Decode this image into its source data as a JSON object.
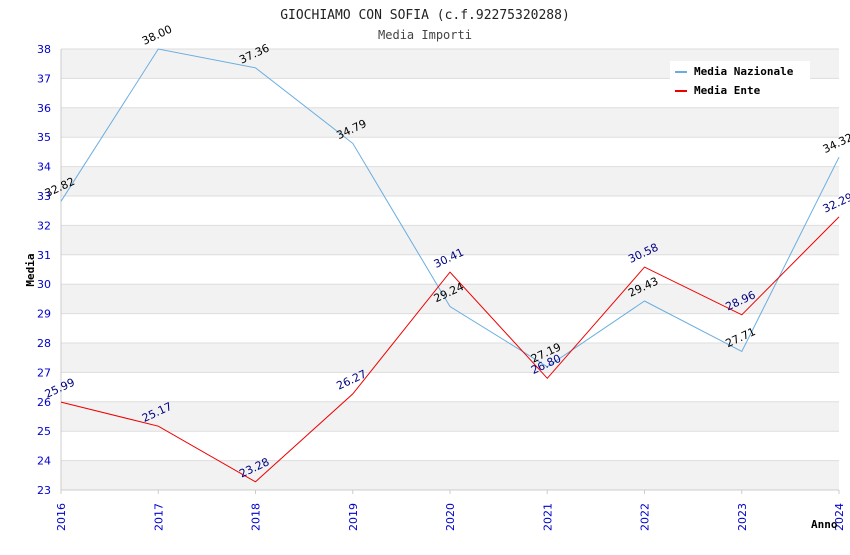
{
  "chart_data": {
    "type": "line",
    "title": "GIOCHIAMO CON SOFIA (c.f.92275320288)",
    "subtitle": "Media Importi",
    "xlabel": "Anno",
    "ylabel": "Media",
    "categories": [
      "2016",
      "2017",
      "2018",
      "2019",
      "2020",
      "2021",
      "2022",
      "2023",
      "2024"
    ],
    "ylim": [
      23,
      38
    ],
    "yticks": [
      "23",
      "24",
      "25",
      "26",
      "27",
      "28",
      "29",
      "30",
      "31",
      "32",
      "33",
      "34",
      "35",
      "36",
      "37",
      "38"
    ],
    "grid": "horizontal alternating bands",
    "legend_position": "top-right",
    "series": [
      {
        "name": "Media Nazionale",
        "color": "#6aaee0",
        "label_color": "#000000",
        "values": [
          32.82,
          38.0,
          37.36,
          34.79,
          29.24,
          27.19,
          29.43,
          27.71,
          34.32
        ],
        "labels": [
          "32.82",
          "38.00",
          "37.36",
          "34.79",
          "29.24",
          "27.19",
          "29.43",
          "27.71",
          "34.32"
        ]
      },
      {
        "name": "Media Ente",
        "color": "#ee0000",
        "label_color": "#000080",
        "values": [
          25.99,
          25.17,
          23.28,
          26.27,
          30.41,
          26.8,
          30.58,
          28.96,
          32.29
        ],
        "labels": [
          "25.99",
          "25.17",
          "23.28",
          "26.27",
          "30.41",
          "26.80",
          "30.58",
          "28.96",
          "32.29"
        ]
      }
    ]
  }
}
